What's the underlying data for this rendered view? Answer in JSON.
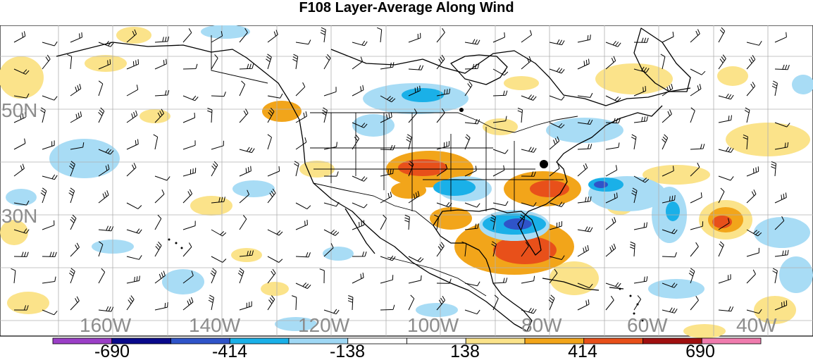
{
  "title": "F108 Layer-Average Along Wind",
  "lat_labels": [
    "50N",
    "30N"
  ],
  "lon_labels": [
    "160W",
    "140W",
    "120W",
    "100W",
    "80W",
    "60W",
    "40W"
  ],
  "colorbar": {
    "colors": [
      "#9b3fc7",
      "#0a0a8c",
      "#2f54c9",
      "#1ab0e8",
      "#9fd8f5",
      "#ffffff",
      "#ffffff",
      "#fbe38a",
      "#f2a51a",
      "#e8501a",
      "#a01010",
      "#f07cae"
    ],
    "tick_labels": [
      "-690",
      "-414",
      "-138",
      "138",
      "414",
      "690"
    ]
  },
  "colors": {
    "grid": "#b0b0b0",
    "coast": "#000000",
    "pos_weak": "#fbe38a",
    "pos_mid": "#f2a51a",
    "pos_strong": "#e8501a",
    "neg_weak": "#a8dcf5",
    "neg_mid": "#1ab0e8",
    "neg_strong": "#2f54c9",
    "marker": "#000000"
  }
}
